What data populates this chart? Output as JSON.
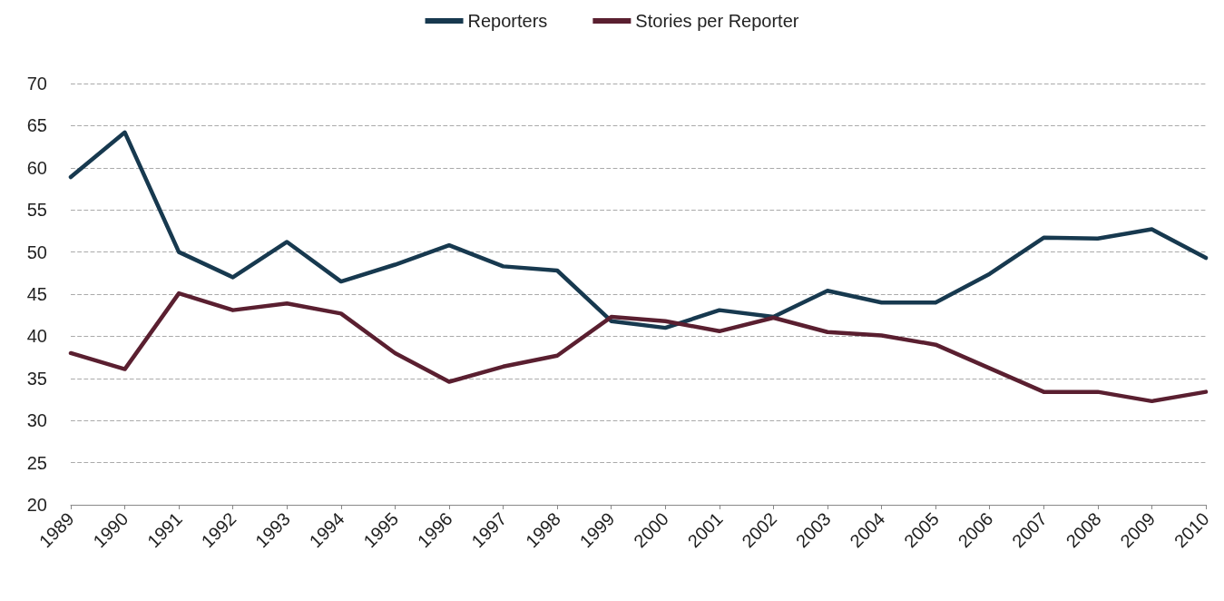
{
  "chart_data": {
    "type": "line",
    "categories": [
      "1989",
      "1990",
      "1991",
      "1992",
      "1993",
      "1994",
      "1995",
      "1996",
      "1997",
      "1998",
      "1999",
      "2000",
      "2001",
      "2002",
      "2003",
      "2004",
      "2005",
      "2006",
      "2007",
      "2008",
      "2009",
      "2010"
    ],
    "series": [
      {
        "name": "Reporters",
        "color": "#17394f",
        "values": [
          58.9,
          64.2,
          50,
          47,
          51.2,
          46.5,
          48.5,
          50.8,
          48.3,
          47.8,
          41.8,
          41,
          43.1,
          42.3,
          45.4,
          44,
          44,
          47.4,
          51.7,
          51.6,
          52.7,
          49.3
        ]
      },
      {
        "name": "Stories per Reporter",
        "color": "#5a1f30",
        "values": [
          38,
          36.1,
          45.1,
          43.1,
          43.9,
          42.7,
          38,
          34.6,
          36.4,
          37.7,
          42.3,
          41.8,
          40.6,
          42.2,
          40.5,
          40.1,
          39,
          36.2,
          33.4,
          33.4,
          32.3,
          33.4
        ]
      }
    ],
    "ylim": [
      20,
      70
    ],
    "yticks": [
      20,
      25,
      30,
      35,
      40,
      45,
      50,
      55,
      60,
      65,
      70
    ],
    "grid": "y",
    "legend": "top",
    "marker": "none",
    "line_style": "solid"
  }
}
